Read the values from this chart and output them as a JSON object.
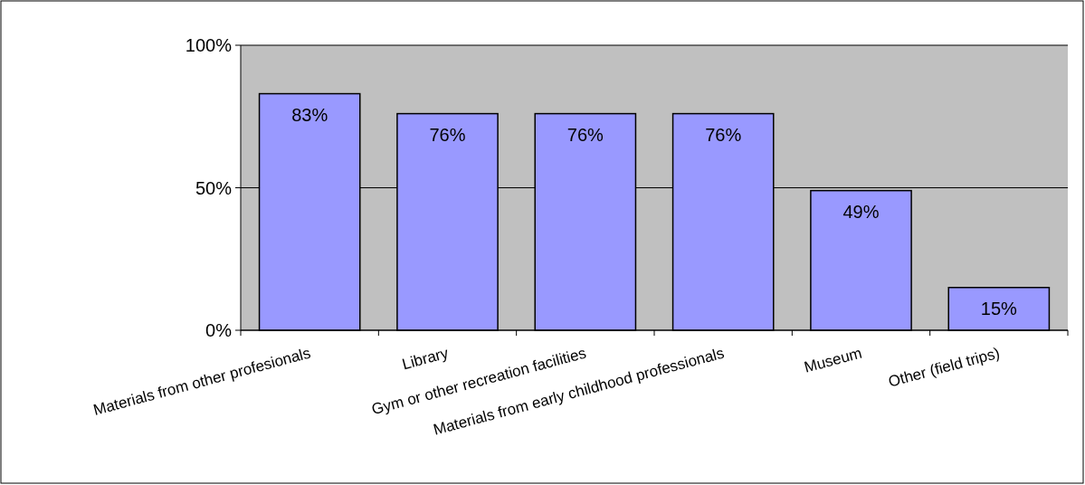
{
  "chart_data": {
    "type": "bar",
    "categories": [
      "Materials from other profesionals",
      "Library",
      "Gym or other recreation facilities",
      "Materials from early childhood professionals",
      "Museum",
      "Other (field trips)"
    ],
    "values": [
      83,
      76,
      76,
      76,
      49,
      15
    ],
    "value_labels": [
      "83%",
      "76%",
      "76%",
      "76%",
      "49%",
      "15%"
    ],
    "color": "#9999ff",
    "ylim": [
      0,
      100
    ],
    "yticks": [
      {
        "value": 0,
        "label": "0%"
      },
      {
        "value": 50,
        "label": "50%"
      },
      {
        "value": 100,
        "label": "100%"
      }
    ],
    "grid": "y"
  }
}
